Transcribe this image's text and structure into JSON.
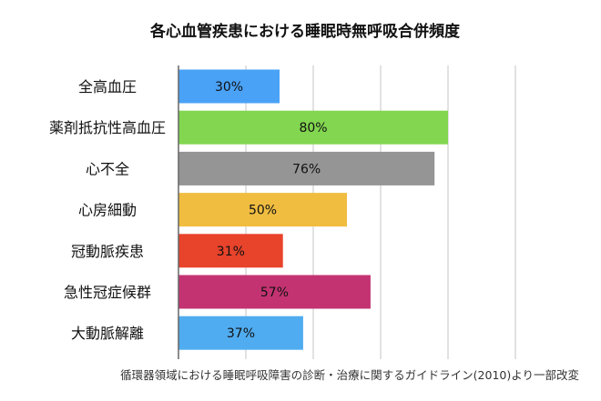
{
  "chart_data": {
    "type": "bar",
    "orientation": "horizontal",
    "title": "各心血管疾患における睡眠時無呼吸合併頻度",
    "categories": [
      "全高血圧",
      "薬剤抵抗性高血圧",
      "心不全",
      "心房細動",
      "冠動脈疾患",
      "急性冠症候群",
      "大動脈解離"
    ],
    "values": [
      30,
      80,
      76,
      50,
      31,
      57,
      37
    ],
    "value_labels": [
      "30%",
      "80%",
      "76%",
      "50%",
      "31%",
      "57%",
      "37%"
    ],
    "colors": [
      "#4aa2f7",
      "#82d650",
      "#959595",
      "#f0bd41",
      "#e8432b",
      "#c33371",
      "#50acf0"
    ],
    "xlim": [
      0,
      100
    ],
    "grid": true,
    "xlabel": "",
    "ylabel": "",
    "source": "循環器領域における睡眠呼吸障害の診断・治療に関するガイドライン(2010)より一部改変"
  }
}
